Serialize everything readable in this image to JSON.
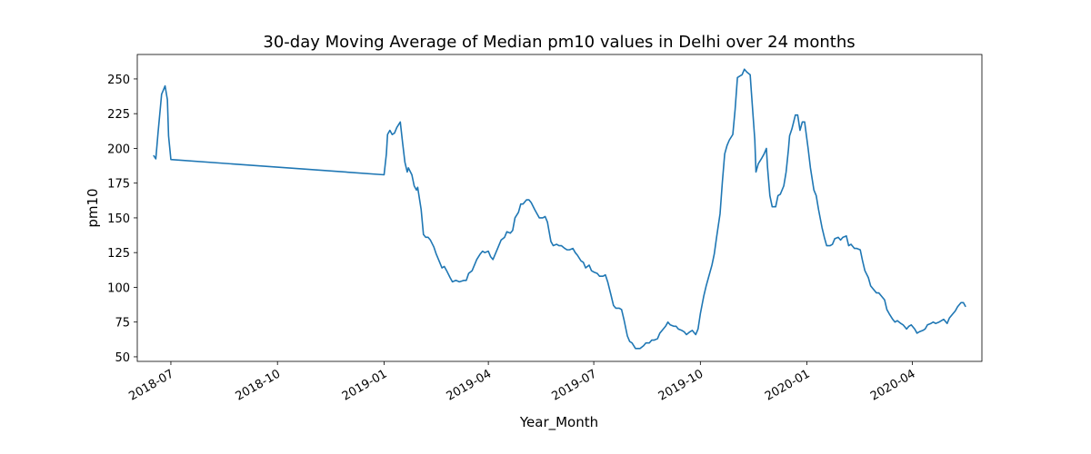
{
  "chart_data": {
    "type": "line",
    "title": "30-day Moving Average of Median pm10 values in Delhi over 24 months",
    "xlabel": "Year_Month",
    "ylabel": "pm10",
    "color": "#1f77b4",
    "grid": false,
    "x": [
      17698,
      17700,
      17702,
      17704,
      17705,
      17707,
      17708,
      17710,
      17711,
      17713,
      17897,
      17899,
      17900,
      17902,
      17904,
      17906,
      17908,
      17911,
      17913,
      17915,
      17917,
      17918,
      17921,
      17923,
      17925,
      17926,
      17929,
      17931,
      17933,
      17935,
      17937,
      17940,
      17942,
      17944,
      17947,
      17949,
      17951,
      17954,
      17956,
      17959,
      17962,
      17966,
      17968,
      17970,
      17973,
      17975,
      17977,
      17980,
      17982,
      17984,
      17987,
      17989,
      17991,
      17994,
      17996,
      17998,
      18001,
      18003,
      18006,
      18008,
      18010,
      18013,
      18015,
      18017,
      18020,
      18022,
      18024,
      18027,
      18029,
      18031,
      18034,
      18036,
      18038,
      18041,
      18043,
      18046,
      18048,
      18050,
      18053,
      18055,
      18057,
      18060,
      18062,
      18064,
      18067,
      18069,
      18071,
      18074,
      18076,
      18078,
      18081,
      18083,
      18086,
      18088,
      18090,
      18093,
      18095,
      18097,
      18100,
      18102,
      18104,
      18107,
      18109,
      18111,
      18114,
      18116,
      18118,
      18121,
      18123,
      18126,
      18128,
      18130,
      18133,
      18135,
      18137,
      18140,
      18142,
      18144,
      18147,
      18149,
      18151,
      18154,
      18156,
      18158,
      18161,
      18163,
      18166,
      18168,
      18170,
      18173,
      18175,
      18177,
      18180,
      18182,
      18184,
      18187,
      18189,
      18191,
      18193,
      18195,
      18198,
      18200,
      18202,
      18204,
      18206,
      18208,
      18210,
      18213,
      18214,
      18217,
      18218,
      18220,
      18223,
      18225,
      18227,
      18228,
      18230,
      18232,
      18235,
      18237,
      18239,
      18242,
      18244,
      18246,
      18247,
      18249,
      18252,
      18254,
      18256,
      18258,
      18260,
      18263,
      18265,
      18268,
      18270,
      18272,
      18275,
      18277,
      18279,
      18282,
      18284,
      18286,
      18289,
      18291,
      18293,
      18296,
      18298,
      18300,
      18303,
      18305,
      18308,
      18310,
      18312,
      18315,
      18317,
      18319,
      18322,
      18324,
      18326,
      18329,
      18331,
      18333,
      18336,
      18338,
      18340,
      18343,
      18345,
      18348,
      18350,
      18352,
      18355,
      18357,
      18359,
      18362,
      18364,
      18366,
      18369,
      18371,
      18373,
      18376,
      18378,
      18380,
      18383,
      18385,
      18388,
      18390,
      18392,
      18395,
      18397,
      18399
    ],
    "values": [
      195,
      192.5,
      212,
      230,
      239,
      243,
      245,
      235,
      209,
      192,
      181,
      196,
      210,
      213,
      210,
      211,
      215,
      219,
      204,
      190,
      183,
      186,
      181,
      173,
      170,
      172,
      156,
      138,
      136,
      136,
      134,
      129,
      124,
      120,
      114,
      115,
      112,
      107,
      104,
      105,
      104,
      105,
      105,
      110,
      112,
      116,
      120,
      124,
      126,
      125,
      126,
      122,
      120,
      126,
      130,
      134,
      136,
      140,
      139,
      141,
      150,
      154,
      160,
      160,
      163,
      163,
      161,
      156,
      153,
      150,
      150,
      151,
      147,
      133,
      130,
      131,
      130,
      130,
      128,
      127,
      127,
      128,
      125,
      123,
      119,
      118,
      114,
      116,
      112,
      111,
      110,
      108,
      108,
      109,
      104,
      94,
      87,
      85,
      85,
      84,
      77,
      65,
      61,
      60,
      56,
      56,
      56,
      58,
      60,
      60,
      62,
      62,
      63,
      67,
      69,
      72,
      75,
      73,
      72,
      72,
      70,
      69,
      68,
      66,
      68,
      69,
      66,
      70,
      81,
      94,
      101,
      107,
      116,
      124,
      136,
      153,
      176,
      196,
      202,
      206,
      210,
      228,
      251,
      252,
      253,
      257,
      255,
      253,
      241,
      206,
      183,
      189,
      193,
      196,
      200,
      186,
      166,
      158,
      158,
      166,
      167,
      173,
      183,
      199,
      209,
      214,
      224,
      224,
      213,
      219,
      219,
      200,
      186,
      170,
      166,
      156,
      143,
      136,
      130,
      130,
      131,
      135,
      136,
      134,
      136,
      137,
      130,
      131,
      128,
      128,
      127,
      119,
      112,
      107,
      101,
      99,
      96,
      96,
      94,
      91,
      84,
      81,
      77,
      75,
      76,
      74,
      73,
      70,
      72,
      73,
      70,
      67,
      68,
      69,
      70,
      73,
      74,
      75,
      74,
      75,
      76,
      77,
      74,
      78,
      81,
      83,
      86,
      89,
      89,
      86
    ],
    "xlim": [
      17684,
      18413
    ],
    "xticks": [
      {
        "value": 17713,
        "label": "2018-07"
      },
      {
        "value": 17805,
        "label": "2018-10"
      },
      {
        "value": 17897,
        "label": "2019-01"
      },
      {
        "value": 17987,
        "label": "2019-04"
      },
      {
        "value": 18078,
        "label": "2019-07"
      },
      {
        "value": 18170,
        "label": "2019-10"
      },
      {
        "value": 18262,
        "label": "2020-01"
      },
      {
        "value": 18353,
        "label": "2020-04"
      }
    ],
    "ylim": [
      46.7,
      267.6
    ],
    "yticks": [
      50,
      75,
      100,
      125,
      150,
      175,
      200,
      225,
      250
    ]
  }
}
